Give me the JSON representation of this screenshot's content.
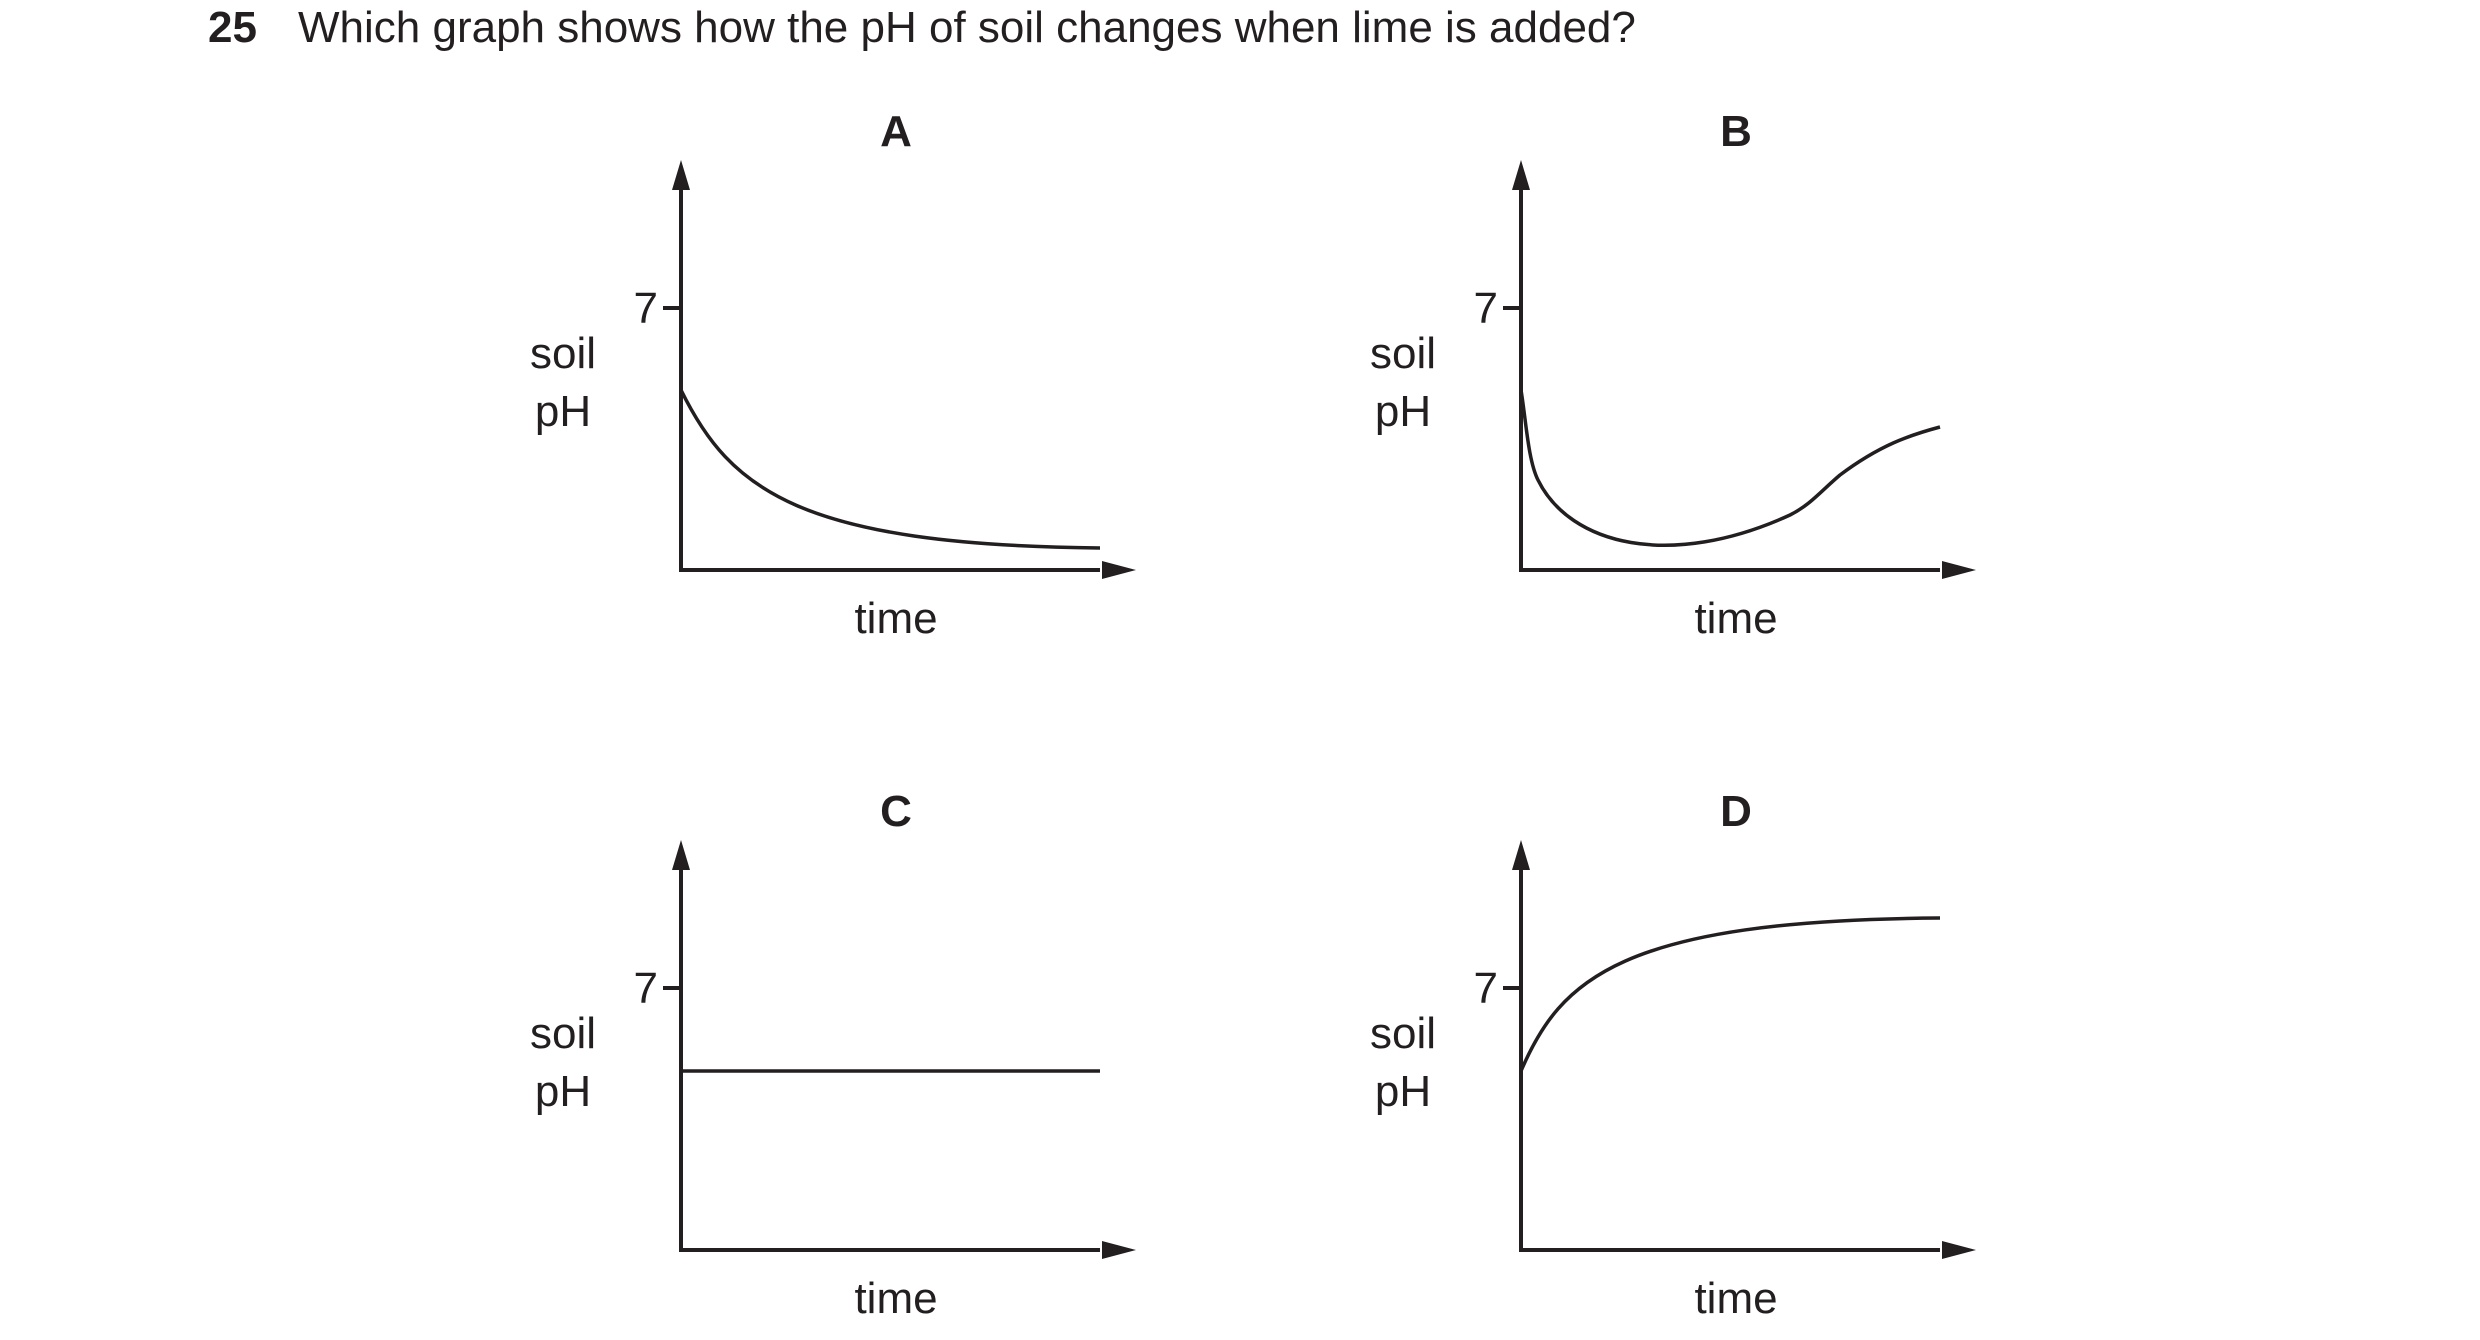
{
  "question": {
    "number": "25",
    "text": "Which graph shows how the pH of soil changes when lime is added?"
  },
  "graphs": [
    {
      "letter": "A",
      "y_label_line1": "soil",
      "y_label_line2": "pH",
      "y_tick_label": "7",
      "x_label": "time",
      "trend": "decreases from below 7 and levels off"
    },
    {
      "letter": "B",
      "y_label_line1": "soil",
      "y_label_line2": "pH",
      "y_tick_label": "7",
      "x_label": "time",
      "trend": "falls sharply, then rises again, staying below 7"
    },
    {
      "letter": "C",
      "y_label_line1": "soil",
      "y_label_line2": "pH",
      "y_tick_label": "7",
      "x_label": "time",
      "trend": "stays constant below 7"
    },
    {
      "letter": "D",
      "y_label_line1": "soil",
      "y_label_line2": "pH",
      "y_tick_label": "7",
      "x_label": "time",
      "trend": "rises from below 7 to above 7 and levels off"
    }
  ]
}
